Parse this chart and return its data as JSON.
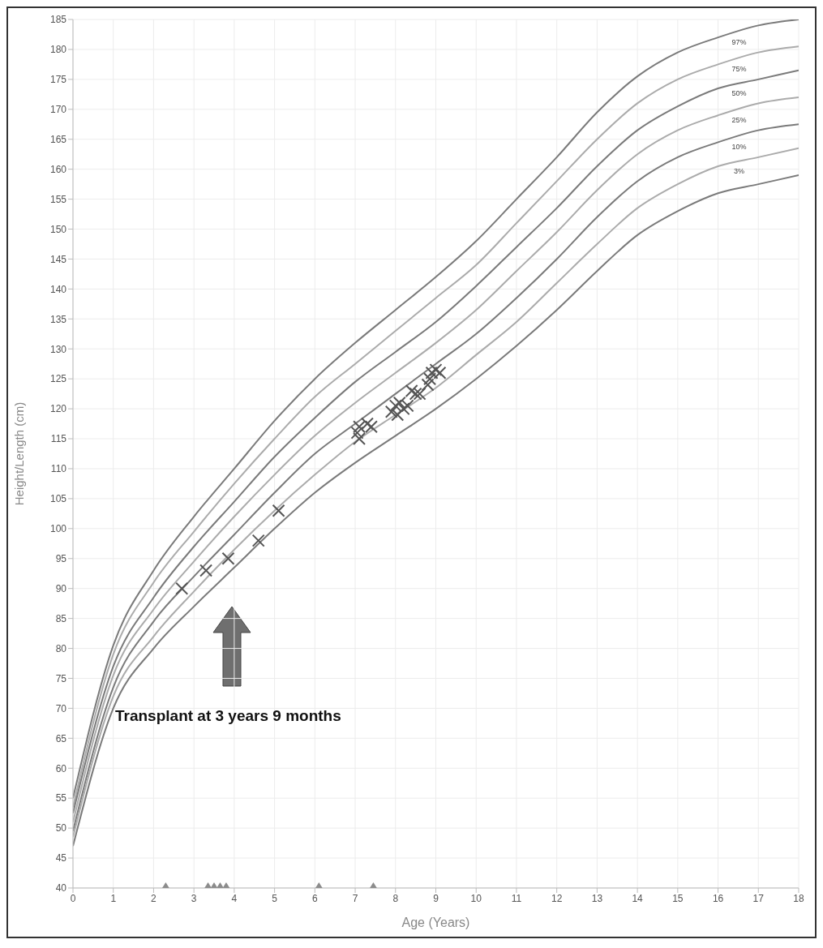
{
  "chart_data": {
    "type": "line",
    "xlabel": "Age (Years)",
    "ylabel": "Height/Length (cm)",
    "x": [
      0,
      1,
      2,
      3,
      4,
      5,
      6,
      7,
      8,
      9,
      10,
      11,
      12,
      13,
      14,
      15,
      16,
      17,
      18
    ],
    "series": [
      {
        "name": "97%",
        "color": "#7a7a7a",
        "marker": "none",
        "values": [
          55,
          80.5,
          93,
          102,
          110,
          118,
          125,
          131,
          136.5,
          142,
          148,
          155,
          162,
          169.5,
          175.5,
          179.5,
          182,
          184,
          185
        ]
      },
      {
        "name": "75%",
        "color": "#ababab",
        "marker": "none",
        "values": [
          53.5,
          79,
          91,
          99.5,
          107.5,
          115,
          122,
          127.5,
          133,
          138.5,
          144,
          151,
          158,
          165,
          171,
          175,
          177.5,
          179.5,
          180.5
        ]
      },
      {
        "name": "50%",
        "color": "#7a7a7a",
        "marker": "none",
        "values": [
          52.5,
          77,
          88.5,
          97,
          104.5,
          112,
          118.5,
          124.5,
          129.5,
          134.5,
          140.5,
          147,
          153.5,
          160.5,
          166.5,
          170.5,
          173.5,
          175,
          176.5
        ]
      },
      {
        "name": "25%",
        "color": "#ababab",
        "marker": "none",
        "values": [
          51,
          75.5,
          86.5,
          94.5,
          102,
          109,
          115.5,
          121,
          126,
          131,
          136.5,
          143,
          149.5,
          156.5,
          162.5,
          166.5,
          169,
          171,
          172
        ]
      },
      {
        "name": "10%",
        "color": "#7a7a7a",
        "marker": "none",
        "values": [
          49.5,
          73.5,
          84.5,
          92,
          99,
          106,
          112.5,
          117.5,
          122.5,
          127.5,
          132.5,
          138.5,
          145,
          152,
          158,
          162,
          164.5,
          166.5,
          167.5
        ]
      },
      {
        "name": "3%",
        "color": "#ababab",
        "marker": "none",
        "values": [
          48.5,
          72,
          82,
          89.5,
          96.5,
          103,
          109,
          114.5,
          119,
          123.5,
          129,
          134.5,
          141,
          147.5,
          153.5,
          157.5,
          160.5,
          162,
          163.5
        ]
      },
      {
        "color": "#7a7a7a",
        "marker": "none",
        "values": [
          47,
          70,
          80,
          87,
          93.5,
          100,
          106,
          111,
          115.5,
          120,
          125,
          130.5,
          136.5,
          143,
          149,
          153,
          156,
          157.5,
          159
        ]
      },
      {
        "type": "scatter",
        "color": "#555555",
        "marker": "cross",
        "x": [
          2.7,
          3.3,
          3.85,
          4.6,
          5.1,
          7.05,
          7.1,
          7.1,
          7.3,
          7.4,
          7.9,
          8.0,
          8.05,
          8.1,
          8.2,
          8.3,
          8.4,
          8.5,
          8.6,
          8.8,
          8.85,
          8.9,
          9.0,
          9.1
        ],
        "values": [
          90,
          93,
          95,
          98,
          103,
          116,
          117,
          115,
          117.5,
          117,
          119.5,
          120.5,
          119,
          121,
          120,
          120.5,
          123,
          122.5,
          122.5,
          124,
          125,
          126,
          126.5,
          126
        ]
      },
      {
        "type": "scatter",
        "color": "#8c8c8c",
        "marker": "triangle",
        "x": [
          2.3,
          3.35,
          3.5,
          3.65,
          3.8,
          6.1,
          7.45
        ],
        "values": [
          40,
          40,
          40,
          40,
          40,
          40,
          40
        ]
      }
    ],
    "xlim": [
      0,
      18
    ],
    "xticks": [
      0,
      1,
      2,
      3,
      4,
      5,
      6,
      7,
      8,
      9,
      10,
      11,
      12,
      13,
      14,
      15,
      16,
      17,
      18
    ],
    "ylim": [
      40,
      185
    ],
    "yticks": [
      40,
      45,
      50,
      55,
      60,
      65,
      70,
      75,
      80,
      85,
      90,
      95,
      100,
      105,
      110,
      115,
      120,
      125,
      130,
      135,
      140,
      145,
      150,
      155,
      160,
      165,
      170,
      175,
      180,
      185
    ],
    "grid": true,
    "annotations": [
      "Transplant at 3 years 9 months"
    ]
  }
}
